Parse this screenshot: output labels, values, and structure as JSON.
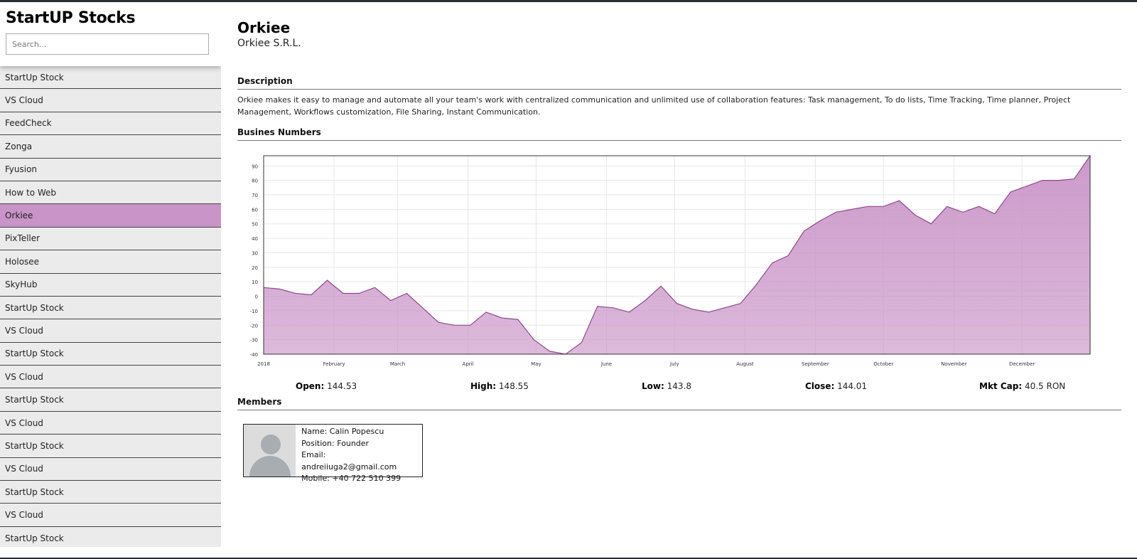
{
  "app": {
    "title": "StartUP Stocks"
  },
  "search": {
    "placeholder": "Search..."
  },
  "sidebar": {
    "items": [
      "StartUp Stock",
      "VS Cloud",
      "FeedCheck",
      "Zonga",
      "Fyusion",
      "How to Web",
      "Orkiee",
      "PixTeller",
      "Holosee",
      "SkyHub",
      "StartUp Stock",
      "VS Cloud",
      "StartUp Stock",
      "VS Cloud",
      "StartUp Stock",
      "VS Cloud",
      "StartUp Stock",
      "VS Cloud",
      "StartUp Stock",
      "VS Cloud",
      "StartUp Stock"
    ],
    "active_index": 6
  },
  "company": {
    "name": "Orkiee",
    "legal_name": "Orkiee S.R.L."
  },
  "description": {
    "title": "Description",
    "text": "Orkiee makes it easy to manage and automate all your team's work with centralized communication and unlimited use of collaboration features: Task management, To do lists, Time Tracking, Time planner, Project Management, Workflows customization, File Sharing, Instant Communication."
  },
  "numbers": {
    "title": "Busines Numbers"
  },
  "chart_data": {
    "type": "area",
    "title": "",
    "xlabel": "",
    "ylabel": "",
    "ylim": [
      -40,
      97
    ],
    "yticks": [
      -40,
      -30,
      -20,
      -10,
      0,
      10,
      20,
      30,
      40,
      50,
      60,
      70,
      80,
      90
    ],
    "xticks": [
      "2018",
      "February",
      "March",
      "April",
      "May",
      "June",
      "July",
      "August",
      "September",
      "October",
      "November",
      "December"
    ],
    "grid": true,
    "color": "#c994c7",
    "line_color": "#8e4a8c",
    "series": [
      {
        "x": [
          "2018-01-01",
          "2018-01-08",
          "2018-01-15",
          "2018-01-22",
          "2018-01-29",
          "2018-02-05",
          "2018-02-12",
          "2018-02-19",
          "2018-02-26",
          "2018-03-05",
          "2018-03-12",
          "2018-03-19",
          "2018-03-26",
          "2018-04-02",
          "2018-04-09",
          "2018-04-16",
          "2018-04-23",
          "2018-04-30",
          "2018-05-07",
          "2018-05-14",
          "2018-05-21",
          "2018-05-28",
          "2018-06-04",
          "2018-06-11",
          "2018-06-18",
          "2018-06-25",
          "2018-07-02",
          "2018-07-09",
          "2018-07-16",
          "2018-07-23",
          "2018-07-30",
          "2018-08-06",
          "2018-08-13",
          "2018-08-20",
          "2018-08-27",
          "2018-09-03",
          "2018-09-10",
          "2018-09-17",
          "2018-09-24",
          "2018-10-01",
          "2018-10-08",
          "2018-10-15",
          "2018-10-22",
          "2018-10-29",
          "2018-11-05",
          "2018-11-12",
          "2018-11-19",
          "2018-11-26",
          "2018-12-03",
          "2018-12-10",
          "2018-12-17",
          "2018-12-24",
          "2018-12-31"
        ],
        "values": [
          6,
          5,
          2,
          1,
          11,
          2,
          2,
          6,
          -3,
          2,
          -8,
          -18,
          -20,
          -20,
          -11,
          -15,
          -16,
          -30,
          -38,
          -40,
          -32,
          -7,
          -8,
          -11,
          -3,
          7,
          -5,
          -9,
          -11,
          -8,
          -5,
          8,
          23,
          28,
          45,
          52,
          58,
          60,
          62,
          62,
          66,
          56,
          50,
          62,
          58,
          62,
          57,
          72,
          76,
          80,
          80,
          81,
          97
        ]
      }
    ]
  },
  "stats": {
    "open_label": "Open:",
    "open_value": "144.53",
    "high_label": "High:",
    "high_value": "148.55",
    "low_label": "Low:",
    "low_value": "143.8",
    "close_label": "Close:",
    "close_value": "144.01",
    "mktcap_label": "Mkt Cap:",
    "mktcap_value": "40.5 RON"
  },
  "members": {
    "title": "Members",
    "list": [
      {
        "name": "Name: Calin Popescu",
        "position": "Position: Founder",
        "email": "Email: andreiiuga2@gmail.com",
        "mobile": "Mobile: +40 722 510 399"
      }
    ]
  }
}
